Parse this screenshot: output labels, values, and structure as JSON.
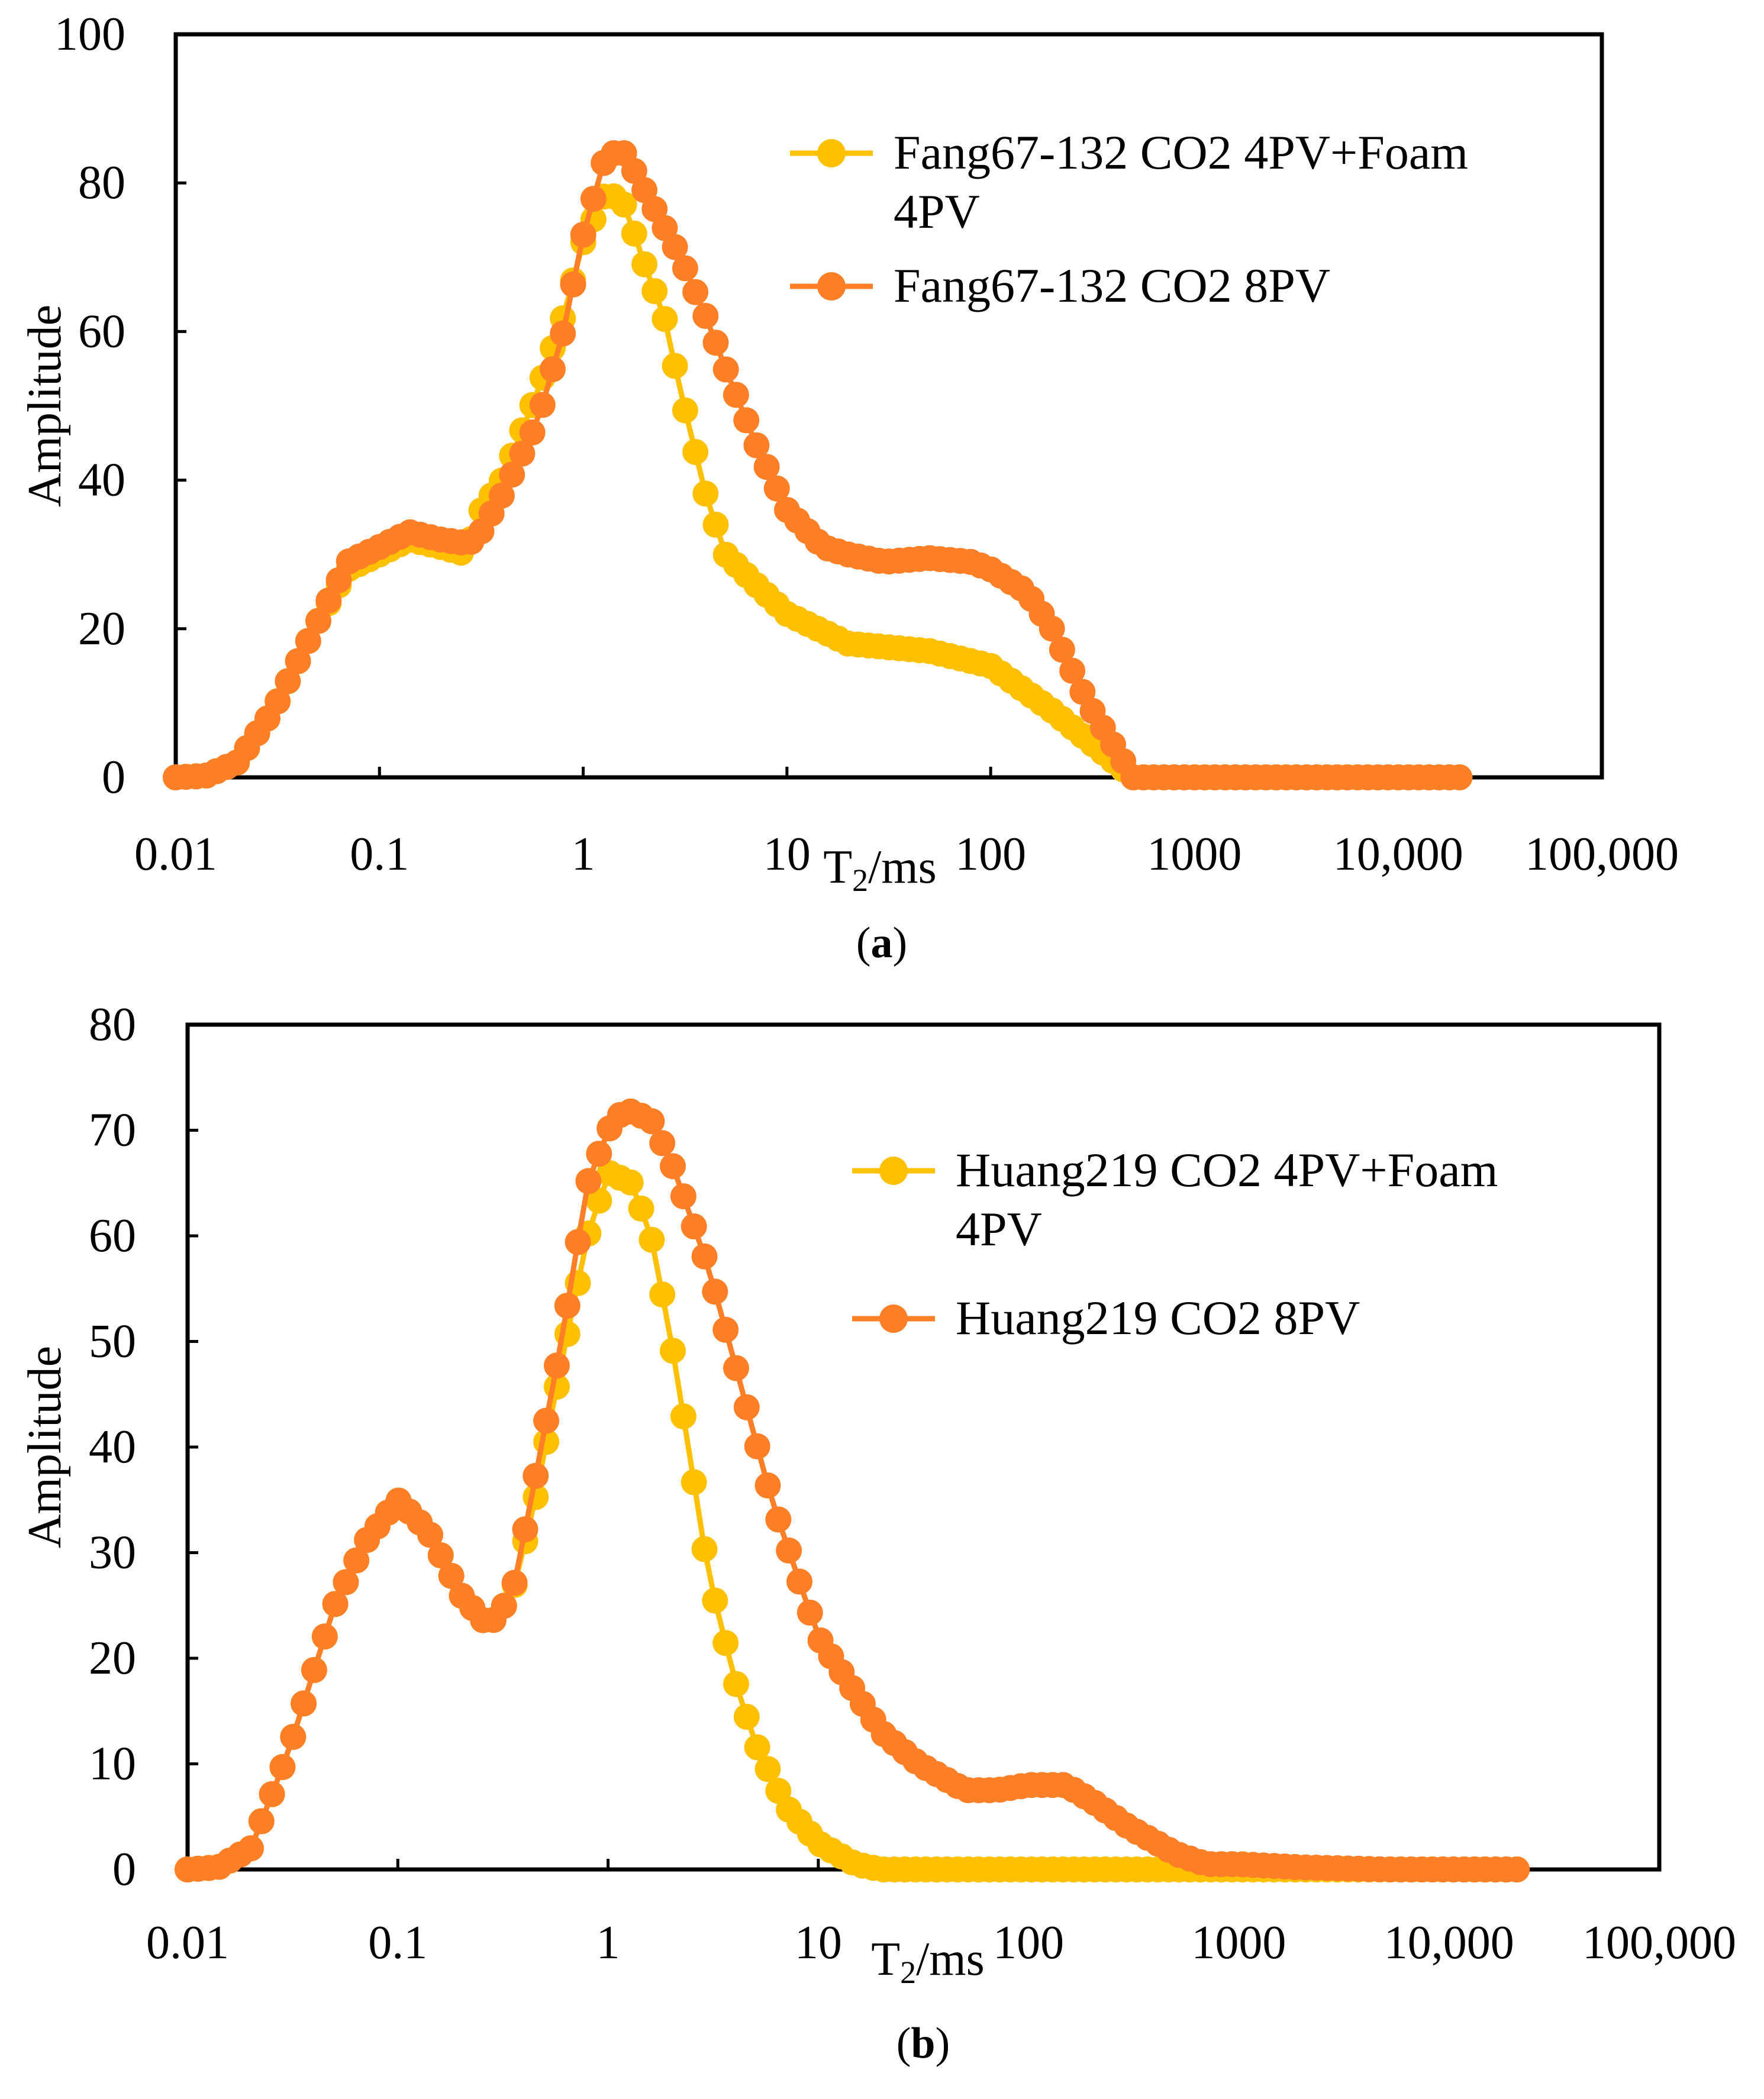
{
  "figure": {
    "palette": {
      "yellow": "#FFC000",
      "orange": "#FF7F27",
      "axis": "#000000"
    }
  },
  "chart_data": [
    {
      "type": "scatter",
      "panel_label": "a",
      "xscale": "log",
      "xlabel_main": "T",
      "xlabel_sub": "2",
      "xlabel_unit": "/ms",
      "ylabel": "Amplitude",
      "xlim": [
        0.01,
        100000
      ],
      "ylim": [
        0,
        100
      ],
      "xticks": [
        0.01,
        0.1,
        1,
        10,
        100,
        1000,
        10000,
        100000
      ],
      "xtick_labels": [
        "0.01",
        "0.1",
        "1",
        "10",
        "100",
        "1000",
        "10,000",
        "100,000"
      ],
      "yticks": [
        0,
        20,
        40,
        60,
        80,
        100
      ],
      "ytick_labels": [
        "0",
        "20",
        "40",
        "60",
        "80",
        "100"
      ],
      "grid": false,
      "legend_position": "top-right",
      "series": [
        {
          "name_lines": [
            "Fang67-132 CO2 4PV+Foam",
            "4PV"
          ],
          "color": "#FFC000",
          "key": [
            [
              0.01,
              0
            ],
            [
              0.014,
              0.2
            ],
            [
              0.02,
              2
            ],
            [
              0.03,
              9
            ],
            [
              0.05,
              21
            ],
            [
              0.07,
              28
            ],
            [
              0.1,
              30
            ],
            [
              0.14,
              32
            ],
            [
              0.2,
              31
            ],
            [
              0.27,
              30
            ],
            [
              0.3,
              35
            ],
            [
              0.4,
              40
            ],
            [
              0.6,
              52
            ],
            [
              0.8,
              62
            ],
            [
              1,
              72
            ],
            [
              1.3,
              79
            ],
            [
              1.6,
              77
            ],
            [
              2,
              69
            ],
            [
              2.5,
              62
            ],
            [
              3,
              52
            ],
            [
              4,
              38
            ],
            [
              5,
              30
            ],
            [
              7,
              26
            ],
            [
              10,
              22
            ],
            [
              20,
              18
            ],
            [
              50,
              17
            ],
            [
              100,
              15
            ],
            [
              200,
              9
            ],
            [
              300,
              5
            ],
            [
              500,
              0
            ],
            [
              1000,
              0
            ],
            [
              5000,
              0
            ],
            [
              20000,
              0
            ]
          ]
        },
        {
          "name_lines": [
            "Fang67-132 CO2 8PV"
          ],
          "color": "#FF7F27",
          "key": [
            [
              0.01,
              0
            ],
            [
              0.014,
              0.2
            ],
            [
              0.02,
              2
            ],
            [
              0.03,
              9
            ],
            [
              0.05,
              21
            ],
            [
              0.07,
              29
            ],
            [
              0.1,
              31
            ],
            [
              0.14,
              33
            ],
            [
              0.2,
              32
            ],
            [
              0.27,
              31.5
            ],
            [
              0.3,
              32
            ],
            [
              0.4,
              38
            ],
            [
              0.6,
              48
            ],
            [
              0.8,
              60
            ],
            [
              1,
              73
            ],
            [
              1.3,
              84
            ],
            [
              1.6,
              84
            ],
            [
              2,
              79
            ],
            [
              3,
              70
            ],
            [
              4,
              62
            ],
            [
              5,
              55
            ],
            [
              7,
              45
            ],
            [
              10,
              36
            ],
            [
              15,
              31
            ],
            [
              20,
              30
            ],
            [
              30,
              29
            ],
            [
              50,
              29.5
            ],
            [
              80,
              29
            ],
            [
              100,
              28
            ],
            [
              150,
              25
            ],
            [
              200,
              20
            ],
            [
              300,
              10
            ],
            [
              500,
              0
            ],
            [
              1000,
              0
            ],
            [
              5000,
              0
            ],
            [
              20000,
              0
            ]
          ]
        }
      ]
    },
    {
      "type": "scatter",
      "panel_label": "b",
      "xscale": "log",
      "xlabel_main": "T",
      "xlabel_sub": "2",
      "xlabel_unit": "/ms",
      "ylabel": "Amplitude",
      "xlim": [
        0.01,
        100000
      ],
      "ylim": [
        0,
        80
      ],
      "xticks": [
        0.01,
        0.1,
        1,
        10,
        100,
        1000,
        10000,
        100000
      ],
      "xtick_labels": [
        "0.01",
        "0.1",
        "1",
        "10",
        "100",
        "1000",
        "10,000",
        "100,000"
      ],
      "yticks": [
        0,
        10,
        20,
        30,
        40,
        50,
        60,
        70,
        80
      ],
      "ytick_labels": [
        "0",
        "10",
        "20",
        "30",
        "40",
        "50",
        "60",
        "70",
        "80"
      ],
      "grid": false,
      "legend_position": "top-right",
      "series": [
        {
          "name_lines": [
            "Huang219 CO2 4PV+Foam",
            "4PV"
          ],
          "color": "#FFC000",
          "key": [
            [
              0.01,
              0
            ],
            [
              0.014,
              0.2
            ],
            [
              0.02,
              2
            ],
            [
              0.03,
              11
            ],
            [
              0.05,
              25
            ],
            [
              0.07,
              31
            ],
            [
              0.1,
              35
            ],
            [
              0.14,
              32
            ],
            [
              0.2,
              26
            ],
            [
              0.27,
              23
            ],
            [
              0.35,
              26
            ],
            [
              0.45,
              35
            ],
            [
              0.6,
              48
            ],
            [
              0.8,
              60
            ],
            [
              1,
              66
            ],
            [
              1.3,
              65
            ],
            [
              1.6,
              60
            ],
            [
              2,
              50
            ],
            [
              2.5,
              38
            ],
            [
              3,
              28
            ],
            [
              4,
              18
            ],
            [
              5,
              12
            ],
            [
              7,
              6
            ],
            [
              10,
              2.5
            ],
            [
              15,
              0.5
            ],
            [
              20,
              0
            ],
            [
              100,
              0
            ],
            [
              1000,
              0
            ],
            [
              20000,
              0
            ]
          ]
        },
        {
          "name_lines": [
            "Huang219 CO2 8PV"
          ],
          "color": "#FF7F27",
          "key": [
            [
              0.01,
              0
            ],
            [
              0.014,
              0.2
            ],
            [
              0.02,
              2
            ],
            [
              0.03,
              11
            ],
            [
              0.05,
              25
            ],
            [
              0.07,
              31
            ],
            [
              0.1,
              35
            ],
            [
              0.14,
              32
            ],
            [
              0.2,
              26
            ],
            [
              0.27,
              23
            ],
            [
              0.35,
              26
            ],
            [
              0.45,
              37
            ],
            [
              0.6,
              50
            ],
            [
              0.8,
              65
            ],
            [
              1,
              70
            ],
            [
              1.2,
              72
            ],
            [
              1.6,
              71
            ],
            [
              2,
              67
            ],
            [
              3,
              57
            ],
            [
              4,
              48
            ],
            [
              6,
              35
            ],
            [
              10,
              22
            ],
            [
              20,
              13
            ],
            [
              30,
              10
            ],
            [
              50,
              7.5
            ],
            [
              70,
              7.5
            ],
            [
              100,
              8
            ],
            [
              150,
              8
            ],
            [
              200,
              6.5
            ],
            [
              300,
              4
            ],
            [
              500,
              1.5
            ],
            [
              700,
              0.5
            ],
            [
              1000,
              0.5
            ],
            [
              2000,
              0.2
            ],
            [
              5000,
              0
            ],
            [
              20000,
              0
            ]
          ]
        }
      ]
    }
  ]
}
